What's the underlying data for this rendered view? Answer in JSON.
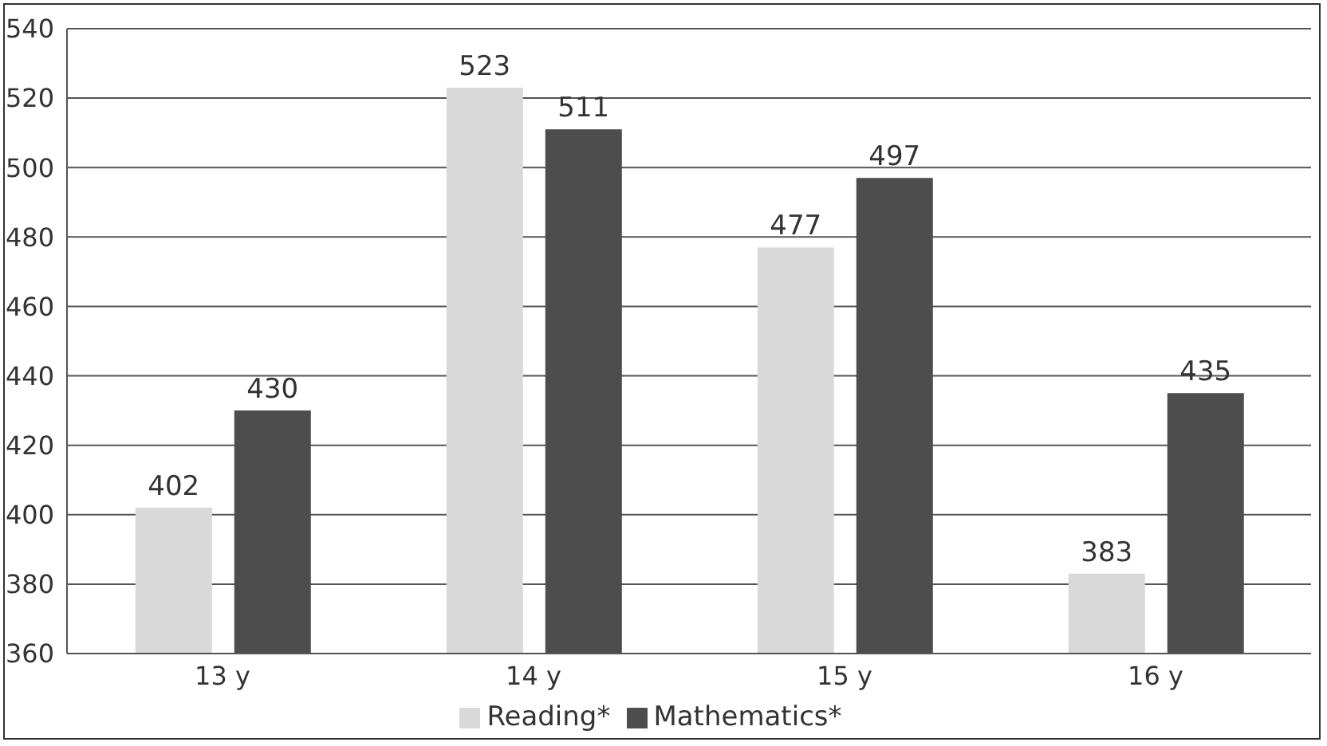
{
  "chart_data": {
    "type": "bar",
    "categories": [
      "13 y",
      "14 y",
      "15 y",
      "16 y"
    ],
    "series": [
      {
        "name": "Reading*",
        "color": "#d9d9d9",
        "values": [
          402,
          523,
          477,
          383
        ]
      },
      {
        "name": "Mathematics*",
        "color": "#4d4d4d",
        "values": [
          430,
          511,
          497,
          435
        ]
      }
    ],
    "ylim": [
      360,
      540
    ],
    "yticks": [
      360,
      380,
      400,
      420,
      440,
      460,
      480,
      500,
      520,
      540
    ],
    "grid": "y",
    "legend": "bottom",
    "data_labels": true
  }
}
